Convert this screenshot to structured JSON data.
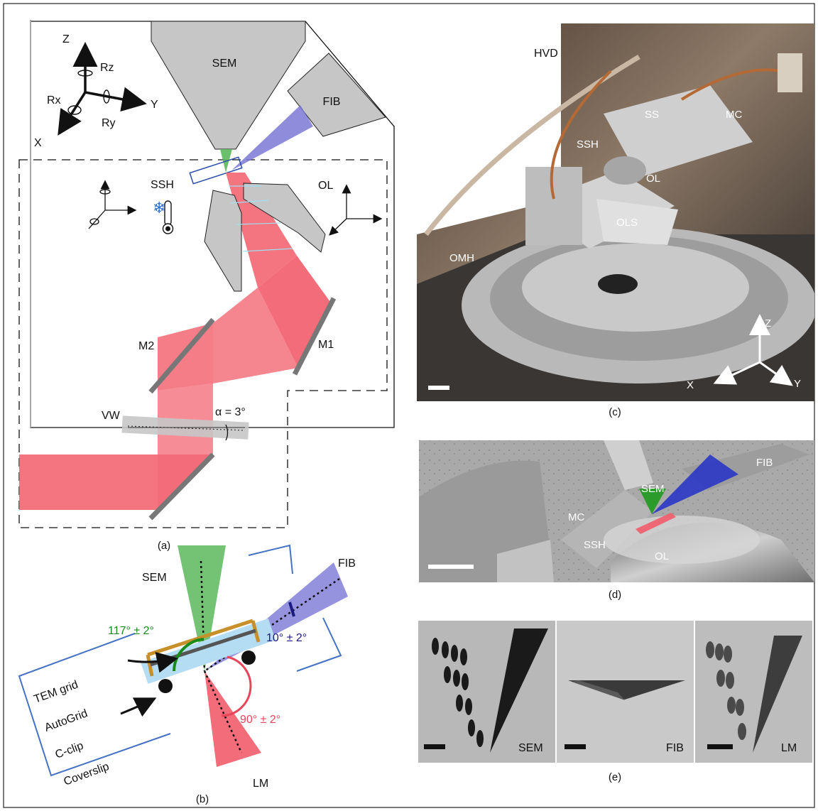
{
  "figure": {
    "colors": {
      "sem_green": "#5cb85c",
      "fib_purple": "#7b78d6",
      "laser_red": "#f25c6a",
      "grey_part": "#c6c6c6",
      "cc_blue": "#4472c4",
      "autogrid_gold": "#c8902a",
      "coverslip_blue": "#b4dcf2",
      "angle_green": "#1a8a1a",
      "angle_navy": "#1a1a80",
      "angle_red": "#e8455a"
    },
    "panel_a": {
      "caption": "(a)",
      "axes": {
        "z": "Z",
        "y": "Y",
        "x": "X",
        "rz": "Rz",
        "rx": "Rx",
        "ry": "Ry"
      },
      "sem": "SEM",
      "fib": "FIB",
      "ssh": "SSH",
      "ol": "OL",
      "m1": "M1",
      "m2": "M2",
      "vw": "VW",
      "alpha": "α = 3°",
      "icons": [
        "snowflake-icon",
        "thermometer-icon"
      ]
    },
    "panel_b": {
      "caption": "(b)",
      "sem": "SEM",
      "fib": "FIB",
      "lm": "LM",
      "angle_sem": "117° ± 2°",
      "angle_fib": "10° ± 2°",
      "angle_lm": "90° ± 2°",
      "tem_grid": "TEM grid",
      "autogrid": "AutoGrid",
      "cclip": "C-clip",
      "coverslip": "Coverslip"
    },
    "panel_c": {
      "caption": "(c)",
      "labels": {
        "hvd": "HVD",
        "ss": "SS",
        "mc": "MC",
        "ssh": "SSH",
        "ol": "OL",
        "ols": "OLS",
        "omh": "OMH"
      },
      "axes": {
        "z": "Z",
        "x": "X",
        "y": "Y"
      }
    },
    "panel_d": {
      "caption": "(d)",
      "labels": {
        "sem": "SEM",
        "fib": "FIB",
        "mc": "MC",
        "ssh": "SSH",
        "ol": "OL"
      }
    },
    "panel_e": {
      "caption": "(e)",
      "tiles": [
        "SEM",
        "FIB",
        "LM"
      ]
    }
  }
}
